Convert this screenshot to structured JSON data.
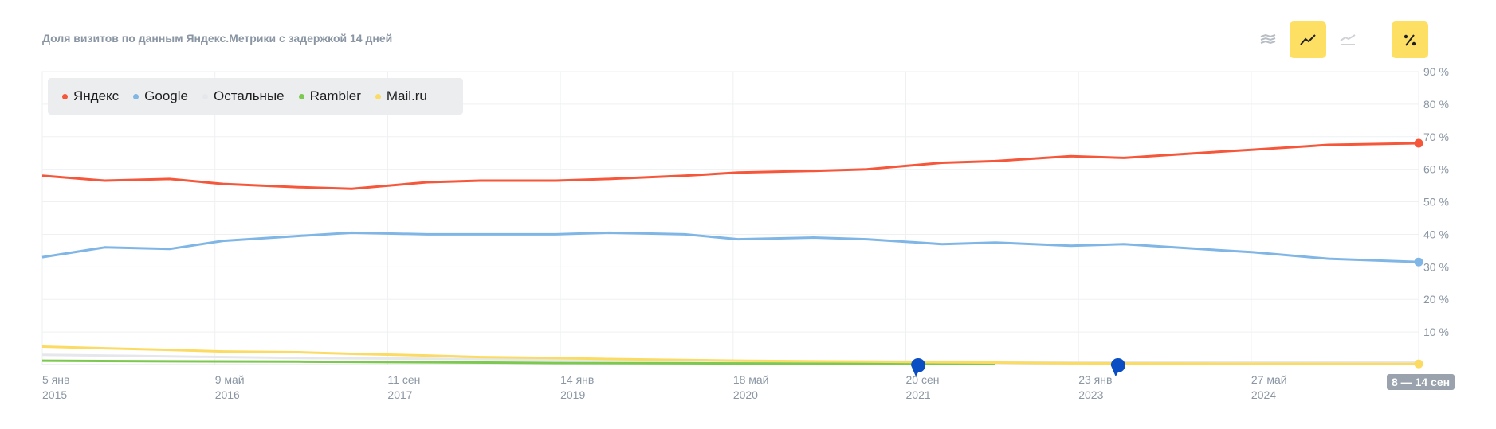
{
  "subtitle": "Доля визитов по данным Яндекс.Метрики с задержкой 14 дней",
  "toolbar": {
    "buttons": [
      {
        "name": "stacked-area-view-button",
        "icon": "stacked-area-icon",
        "active": false
      },
      {
        "name": "line-view-button",
        "icon": "line-chart-icon",
        "active": true
      },
      {
        "name": "area-view-button",
        "icon": "area-chart-icon",
        "active": false
      },
      {
        "name": "percent-toggle-button",
        "icon": "percent-icon",
        "active": true
      }
    ]
  },
  "range_badge": "8 — 14 сен",
  "chart_data": {
    "type": "line",
    "ylim": [
      0,
      90
    ],
    "y_ticks": [
      "10 %",
      "20 %",
      "30 %",
      "40 %",
      "50 %",
      "60 %",
      "70 %",
      "80 %",
      "90 %"
    ],
    "y_tick_values": [
      10,
      20,
      30,
      40,
      50,
      60,
      70,
      80,
      90
    ],
    "x_range": [
      "2015-01-05",
      "2025-09-14"
    ],
    "x_ticks": [
      {
        "date": "2015-01-05",
        "line1": "5 янв",
        "line2": "2015"
      },
      {
        "date": "2016-05-09",
        "line1": "9 май",
        "line2": "2016"
      },
      {
        "date": "2017-09-11",
        "line1": "11 сен",
        "line2": "2017"
      },
      {
        "date": "2019-01-14",
        "line1": "14 янв",
        "line2": "2019"
      },
      {
        "date": "2020-05-18",
        "line1": "18 май",
        "line2": "2020"
      },
      {
        "date": "2021-09-20",
        "line1": "20 сен",
        "line2": "2021"
      },
      {
        "date": "2023-01-23",
        "line1": "23 янв",
        "line2": "2023"
      },
      {
        "date": "2024-05-27",
        "line1": "27 май",
        "line2": "2024"
      }
    ],
    "legend": "top-left",
    "grid": true,
    "series": [
      {
        "name": "Яндекс",
        "color": "#f6573b",
        "points": [
          [
            "2015-01-05",
            58
          ],
          [
            "2015-07-01",
            56.5
          ],
          [
            "2016-01-01",
            57
          ],
          [
            "2016-06-01",
            55.5
          ],
          [
            "2017-01-01",
            54.5
          ],
          [
            "2017-06-01",
            54
          ],
          [
            "2018-01-01",
            56
          ],
          [
            "2018-06-01",
            56.5
          ],
          [
            "2019-01-01",
            56.5
          ],
          [
            "2019-06-01",
            57
          ],
          [
            "2020-01-01",
            58
          ],
          [
            "2020-06-01",
            59
          ],
          [
            "2021-01-01",
            59.5
          ],
          [
            "2021-06-01",
            60
          ],
          [
            "2022-01-01",
            62
          ],
          [
            "2022-06-01",
            62.5
          ],
          [
            "2023-01-01",
            64
          ],
          [
            "2023-06-01",
            63.5
          ],
          [
            "2024-01-01",
            65
          ],
          [
            "2024-06-01",
            66
          ],
          [
            "2025-01-01",
            67.5
          ],
          [
            "2025-09-14",
            68
          ]
        ]
      },
      {
        "name": "Google",
        "color": "#7fb6e6",
        "points": [
          [
            "2015-01-05",
            33
          ],
          [
            "2015-07-01",
            36
          ],
          [
            "2016-01-01",
            35.5
          ],
          [
            "2016-06-01",
            38
          ],
          [
            "2017-01-01",
            39.5
          ],
          [
            "2017-06-01",
            40.5
          ],
          [
            "2018-01-01",
            40
          ],
          [
            "2018-06-01",
            40
          ],
          [
            "2019-01-01",
            40
          ],
          [
            "2019-06-01",
            40.5
          ],
          [
            "2020-01-01",
            40
          ],
          [
            "2020-06-01",
            38.5
          ],
          [
            "2021-01-01",
            39
          ],
          [
            "2021-06-01",
            38.5
          ],
          [
            "2022-01-01",
            37
          ],
          [
            "2022-06-01",
            37.5
          ],
          [
            "2023-01-01",
            36.5
          ],
          [
            "2023-06-01",
            37
          ],
          [
            "2024-01-01",
            35.5
          ],
          [
            "2024-06-01",
            34.5
          ],
          [
            "2025-01-01",
            32.5
          ],
          [
            "2025-09-14",
            31.5
          ]
        ]
      },
      {
        "name": "Остальные",
        "color": "#e6e7ea",
        "points": [
          [
            "2015-01-05",
            3
          ],
          [
            "2016-01-01",
            2.5
          ],
          [
            "2017-01-01",
            2
          ],
          [
            "2018-01-01",
            1.8
          ],
          [
            "2019-01-01",
            1.5
          ],
          [
            "2020-01-01",
            1.2
          ],
          [
            "2021-01-01",
            1.0
          ],
          [
            "2022-01-01",
            0.9
          ],
          [
            "2023-01-01",
            0.8
          ],
          [
            "2024-01-01",
            0.7
          ],
          [
            "2025-09-14",
            0.6
          ]
        ]
      },
      {
        "name": "Rambler",
        "color": "#7dc94f",
        "points": [
          [
            "2015-01-05",
            1.2
          ],
          [
            "2016-01-01",
            1.0
          ],
          [
            "2017-01-01",
            0.9
          ],
          [
            "2018-01-01",
            0.7
          ],
          [
            "2019-01-01",
            0.5
          ],
          [
            "2020-01-01",
            0.4
          ],
          [
            "2021-01-01",
            0.3
          ],
          [
            "2022-06-01",
            0.2
          ]
        ]
      },
      {
        "name": "Mail.ru",
        "color": "#fcdb62",
        "points": [
          [
            "2015-01-05",
            5.5
          ],
          [
            "2015-07-01",
            5
          ],
          [
            "2016-01-01",
            4.5
          ],
          [
            "2016-06-01",
            4
          ],
          [
            "2017-01-01",
            3.8
          ],
          [
            "2017-06-01",
            3.3
          ],
          [
            "2018-01-01",
            2.8
          ],
          [
            "2018-06-01",
            2.3
          ],
          [
            "2019-01-01",
            2.0
          ],
          [
            "2019-06-01",
            1.7
          ],
          [
            "2020-01-01",
            1.4
          ],
          [
            "2020-06-01",
            1.2
          ],
          [
            "2021-01-01",
            1.0
          ],
          [
            "2021-06-01",
            0.9
          ],
          [
            "2022-01-01",
            0.7
          ],
          [
            "2022-06-01",
            0.6
          ],
          [
            "2023-01-01",
            0.4
          ],
          [
            "2024-01-01",
            0.3
          ],
          [
            "2025-09-14",
            0.2
          ]
        ]
      }
    ],
    "markers": [
      {
        "date": "2021-10-25",
        "color": "#0b4ec3",
        "icon": "annotation-pin-icon"
      },
      {
        "date": "2023-05-15",
        "color": "#0b4ec3",
        "icon": "annotation-pin-icon"
      }
    ]
  }
}
